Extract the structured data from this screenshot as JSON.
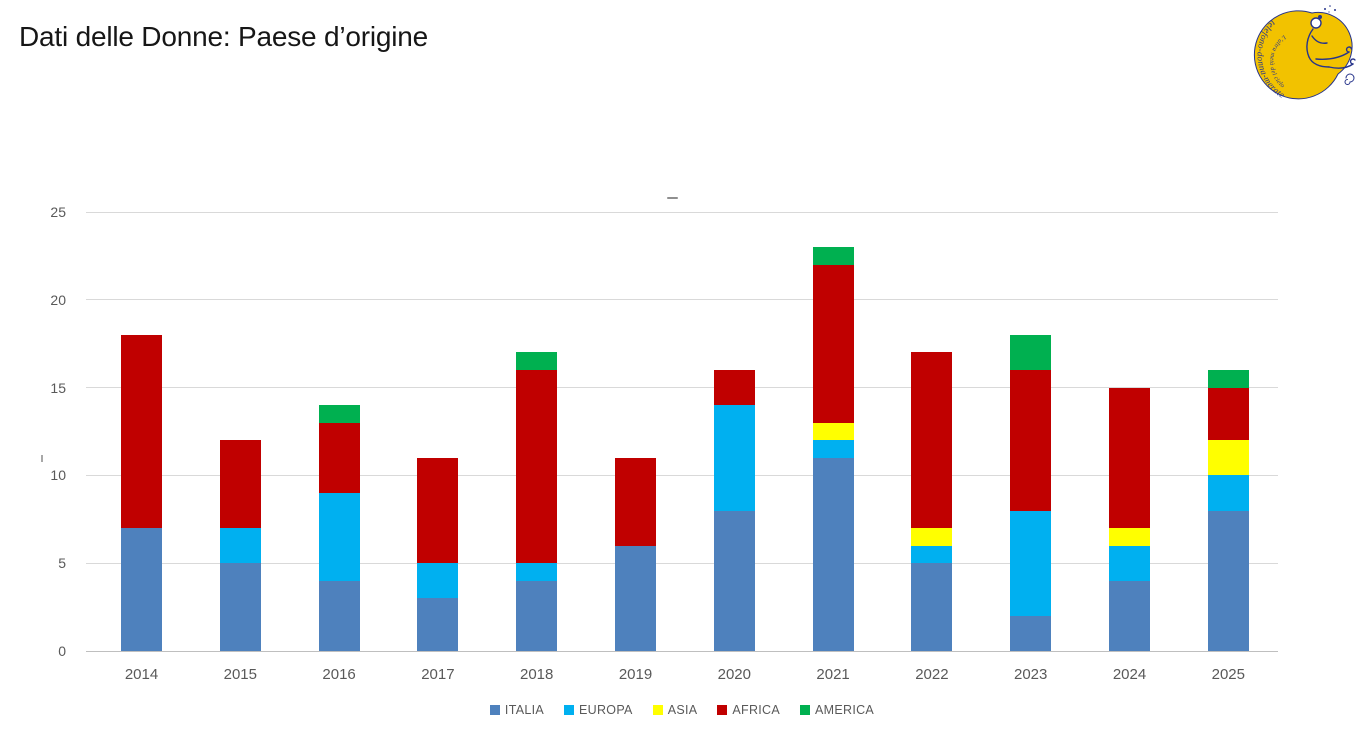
{
  "page": {
    "title": "Dati delle Donne: Paese d’origine"
  },
  "logo": {
    "outer_text": "telefono-donna-merate",
    "inner_text": "L’altra metà del cielo"
  },
  "chart_data": {
    "type": "bar",
    "stacked": true,
    "title": "",
    "xlabel": "",
    "ylabel": "",
    "categories": [
      "2014",
      "2015",
      "2016",
      "2017",
      "2018",
      "2019",
      "2020",
      "2021",
      "2022",
      "2023",
      "2024",
      "2025"
    ],
    "series": [
      {
        "name": "ITALIA",
        "color": "#4E81BD",
        "values": [
          7,
          5,
          4,
          3,
          4,
          6,
          8,
          11,
          5,
          2,
          4,
          8
        ]
      },
      {
        "name": "EUROPA",
        "color": "#00B0F0",
        "values": [
          0,
          2,
          5,
          2,
          1,
          0,
          6,
          1,
          1,
          6,
          2,
          2
        ]
      },
      {
        "name": "ASIA",
        "color": "#FFFF00",
        "values": [
          0,
          0,
          0,
          0,
          0,
          0,
          0,
          1,
          1,
          0,
          1,
          2
        ]
      },
      {
        "name": "AFRICA",
        "color": "#C00000",
        "values": [
          11,
          5,
          4,
          6,
          11,
          5,
          2,
          9,
          10,
          8,
          8,
          3
        ]
      },
      {
        "name": "AMERICA",
        "color": "#00B050",
        "values": [
          0,
          0,
          1,
          0,
          1,
          0,
          0,
          1,
          0,
          2,
          0,
          1
        ]
      }
    ],
    "totals": [
      18,
      12,
      14,
      11,
      17,
      11,
      16,
      23,
      17,
      18,
      15,
      16
    ],
    "y_ticks": [
      0,
      5,
      10,
      15,
      20,
      25
    ],
    "ylim": [
      0,
      25
    ],
    "grid": true,
    "legend_position": "bottom",
    "axis_text_color": "#595959",
    "gridline_color": "#D9D9D9"
  }
}
